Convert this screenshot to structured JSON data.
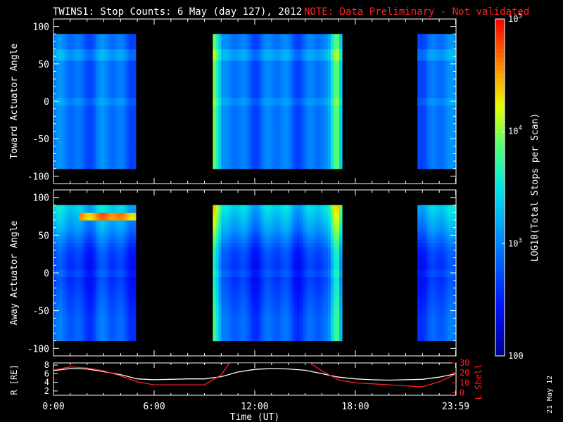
{
  "header": {
    "title": "TWINS1: Stop Counts:  6 May (day 127), 2012",
    "note": "NOTE: Data Preliminary - Not validated",
    "note_color": "#ff2020"
  },
  "side_date": "21 May 12",
  "colorbar": {
    "label": "LOG10(Total Stops per Scan)",
    "ticks": [
      {
        "value": 100,
        "label": "100",
        "exp": ""
      },
      {
        "value": 1000,
        "label": "10",
        "exp": "3"
      },
      {
        "value": 10000,
        "label": "10",
        "exp": "4"
      },
      {
        "value": 100000,
        "label": "10",
        "exp": "5"
      }
    ],
    "range": [
      100,
      100000
    ],
    "scale": "log"
  },
  "chart_data": [
    {
      "type": "heatmap",
      "title": "",
      "ylabel": "Toward Actuator Angle",
      "xlabel": "",
      "ylim": [
        -110,
        110
      ],
      "yticks": [
        -100,
        -50,
        0,
        50,
        100
      ],
      "x_range_hours": [
        0,
        24
      ],
      "data_angle_range": [
        -90,
        90
      ],
      "data_segments_hours": [
        [
          0,
          4.9
        ],
        [
          9.5,
          17.2
        ],
        [
          21.7,
          24
        ]
      ],
      "bright_edges_hours": [
        9.6,
        16.9
      ],
      "baseline_log_counts": 2.9
    },
    {
      "type": "heatmap",
      "title": "",
      "ylabel": "Away Actuator Angle",
      "xlabel": "",
      "ylim": [
        -110,
        110
      ],
      "yticks": [
        -100,
        -50,
        0,
        50,
        100
      ],
      "x_range_hours": [
        0,
        24
      ],
      "data_angle_range": [
        -90,
        90
      ],
      "data_segments_hours": [
        [
          0,
          4.9
        ],
        [
          9.5,
          17.2
        ],
        [
          21.7,
          24
        ]
      ],
      "bright_edges_hours": [
        9.6,
        16.9
      ],
      "hot_band": {
        "hours": [
          1.5,
          4.9
        ],
        "angle": 75
      },
      "baseline_log_counts": 2.8
    },
    {
      "type": "line",
      "xlabel": "Time (UT)",
      "x_tick_labels": [
        "0:00",
        "6:00",
        "12:00",
        "18:00",
        "23:59"
      ],
      "x_tick_hours": [
        0,
        6,
        12,
        18,
        23.98
      ],
      "y_left": {
        "label": "R [RE]",
        "ticks": [
          2,
          4,
          6,
          8
        ],
        "range": [
          1,
          8.5
        ]
      },
      "y_right": {
        "label": "L Shell",
        "ticks": [
          0,
          10,
          20,
          30
        ],
        "range": [
          -2.5,
          30
        ]
      },
      "series": [
        {
          "name": "R",
          "axis": "left",
          "color": "#ffffff",
          "x": [
            0,
            1,
            2,
            3,
            4,
            5,
            6,
            7,
            8,
            9,
            10,
            11,
            12,
            13,
            14,
            15,
            16,
            17,
            18,
            19,
            20,
            21,
            22,
            23,
            24
          ],
          "y": [
            6.7,
            7.2,
            7.1,
            6.5,
            5.8,
            4.8,
            4.6,
            4.7,
            4.8,
            4.8,
            5.3,
            6.4,
            7.0,
            7.2,
            7.1,
            6.8,
            6.0,
            5.2,
            4.8,
            4.6,
            4.5,
            4.6,
            4.7,
            5.2,
            6.0
          ]
        },
        {
          "name": "L Shell",
          "axis": "right",
          "color": "#ff2020",
          "x": [
            0,
            1,
            2,
            3,
            4,
            5,
            6,
            7,
            8,
            9,
            10,
            10.5,
            15.3,
            16,
            17,
            18,
            19,
            20,
            21,
            22,
            23,
            24
          ],
          "y": [
            23,
            26,
            25,
            22,
            17,
            11,
            8,
            8,
            8,
            8,
            18,
            30,
            30,
            22,
            13,
            10,
            9,
            8,
            7,
            6,
            11,
            19
          ]
        }
      ]
    }
  ]
}
